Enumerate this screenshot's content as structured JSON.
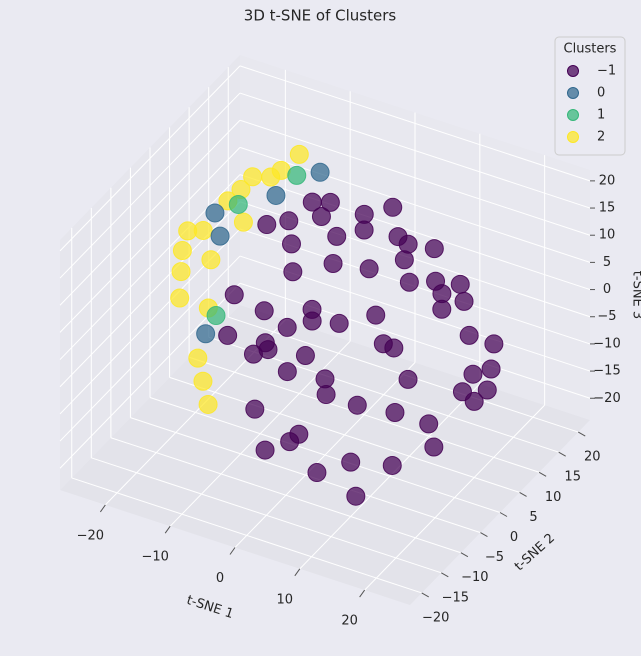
{
  "chart_data": {
    "type": "scatter3d",
    "title": "3D t-SNE of Clusters",
    "x_label": "t-SNE 1",
    "y_label": "t-SNE 2",
    "z_label": "t-SNE 3",
    "xlim": [
      -27,
      27
    ],
    "ylim": [
      -23,
      23
    ],
    "zlim": [
      -24,
      22
    ],
    "xticks": [
      {
        "value": -20,
        "label": "−20"
      },
      {
        "value": -10,
        "label": "−10"
      },
      0,
      10,
      20
    ],
    "yticks": [
      {
        "value": -20,
        "label": "−20"
      },
      {
        "value": -15,
        "label": "−15"
      },
      {
        "value": -10,
        "label": "−10"
      },
      {
        "value": -5,
        "label": "−5"
      },
      0,
      5,
      10,
      15,
      20
    ],
    "zticks": [
      {
        "value": -20,
        "label": "−20"
      },
      {
        "value": -15,
        "label": "−15"
      },
      {
        "value": -10,
        "label": "−10"
      },
      {
        "value": -5,
        "label": "−5"
      },
      0,
      5,
      10,
      15,
      20
    ],
    "grid": true,
    "legend_title": "Clusters",
    "legend_position": "upper right",
    "series": [
      {
        "name": "−1",
        "color": "#440154",
        "x": [
          -12,
          -10,
          -8,
          -6,
          -5,
          -3,
          0,
          2,
          5,
          8,
          10,
          12,
          15,
          18,
          20,
          16,
          12,
          8,
          5,
          2,
          0,
          -2,
          -4,
          -8,
          -10,
          -12,
          -14,
          -6,
          -2,
          3,
          6,
          10,
          14,
          18,
          20,
          22,
          15,
          10,
          5,
          0,
          -4,
          -8,
          3,
          7,
          11,
          -1,
          4,
          9,
          13,
          6,
          -9,
          -11,
          -13,
          1,
          17,
          19,
          0,
          -5,
          8,
          12
        ],
        "y": [
          5,
          8,
          10,
          12,
          5,
          15,
          10,
          14,
          12,
          15,
          18,
          10,
          12,
          8,
          5,
          0,
          -2,
          -5,
          -8,
          -10,
          -5,
          0,
          -3,
          -2,
          2,
          -5,
          0,
          -8,
          -12,
          -14,
          -12,
          -10,
          -6,
          -2,
          2,
          6,
          5,
          5,
          3,
          3,
          8,
          4,
          8,
          6,
          3,
          -8,
          -3,
          0,
          14,
          18,
          14,
          10,
          6,
          17,
          15,
          10,
          0,
          -10,
          8,
          -12
        ],
        "z": [
          10,
          5,
          12,
          0,
          -5,
          8,
          10,
          12,
          5,
          0,
          -2,
          3,
          -5,
          -8,
          -10,
          -12,
          -10,
          -8,
          -5,
          -12,
          -2,
          2,
          -8,
          -5,
          -10,
          -3,
          0,
          -12,
          -15,
          -10,
          -16,
          -14,
          -16,
          -14,
          -6,
          -4,
          5,
          8,
          10,
          14,
          15,
          13,
          -3,
          -6,
          -8,
          5,
          4,
          0,
          -1,
          3,
          6,
          -2,
          -7,
          4,
          -8,
          -12,
          -10,
          0,
          12,
          -18
        ]
      },
      {
        "name": "0",
        "color": "#31688e",
        "x": [
          -18,
          -13,
          -16,
          -8,
          -20
        ],
        "y": [
          3,
          9,
          -4,
          12,
          5
        ],
        "z": [
          7,
          12,
          -5,
          16,
          9
        ]
      },
      {
        "name": "1",
        "color": "#35b779",
        "x": [
          -17,
          -11,
          -15
        ],
        "y": [
          6,
          11,
          -3
        ],
        "z": [
          11,
          15,
          -2
        ]
      },
      {
        "name": "2",
        "color": "#fde725",
        "x": [
          -22,
          -20,
          -21,
          -18,
          -16,
          -19,
          -14,
          -20,
          -17,
          -15,
          -12,
          -10,
          -23,
          -16,
          -14,
          -12,
          -18
        ],
        "y": [
          0,
          2,
          -2,
          5,
          8,
          10,
          12,
          -4,
          -1,
          4,
          6,
          10,
          3,
          -6,
          -8,
          -10,
          0
        ],
        "z": [
          5,
          8,
          3,
          12,
          15,
          10,
          14,
          0,
          6,
          10,
          18,
          20,
          6,
          -8,
          -10,
          -12,
          -4
        ]
      }
    ]
  }
}
